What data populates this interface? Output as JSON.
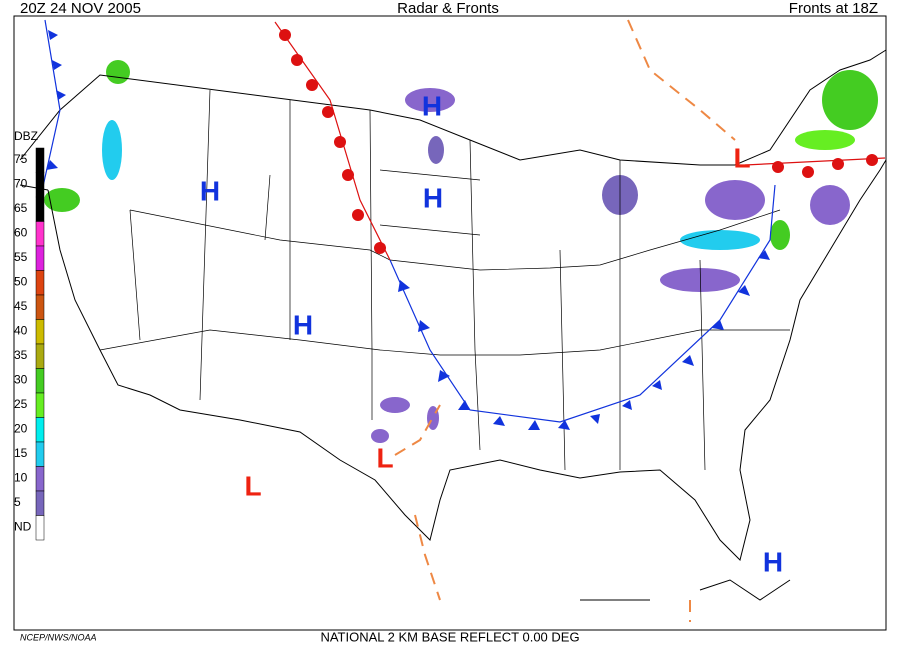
{
  "header": {
    "left": "20Z  24 NOV  2005",
    "center": "Radar & Fronts",
    "right": "Fronts at 18Z"
  },
  "legend": {
    "title": "DBZ",
    "levels": [
      {
        "label": "75",
        "color": "#000000"
      },
      {
        "label": "70",
        "color": "#000000"
      },
      {
        "label": "65",
        "color": "#000000"
      },
      {
        "label": "60",
        "color": "#ff33cc"
      },
      {
        "label": "55",
        "color": "#dd22dd"
      },
      {
        "label": "50",
        "color": "#dd4411"
      },
      {
        "label": "45",
        "color": "#cc5511"
      },
      {
        "label": "40",
        "color": "#ccbb00"
      },
      {
        "label": "35",
        "color": "#aaaa11"
      },
      {
        "label": "30",
        "color": "#44cc22"
      },
      {
        "label": "25",
        "color": "#66ee22"
      },
      {
        "label": "20",
        "color": "#00eeee"
      },
      {
        "label": "15",
        "color": "#22ccee"
      },
      {
        "label": "10",
        "color": "#8866cc"
      },
      {
        "label": "5",
        "color": "#7766bb"
      },
      {
        "label": "ND",
        "color": "#ffffff"
      }
    ]
  },
  "pressure_centers": [
    {
      "label": "H",
      "color": "#1133dd"
    },
    {
      "label": "H",
      "color": "#1133dd"
    },
    {
      "label": "H",
      "color": "#1133dd"
    },
    {
      "label": "H",
      "color": "#1133dd"
    },
    {
      "label": "H",
      "color": "#1133dd"
    },
    {
      "label": "L",
      "color": "#ee2211"
    },
    {
      "label": "L",
      "color": "#ee2211"
    },
    {
      "label": "L",
      "color": "#ee2211"
    }
  ],
  "footer": {
    "left": "NCEP/NWS/NOAA",
    "center": "NATIONAL 2 KM BASE REFLECT 0.00 DEG"
  }
}
